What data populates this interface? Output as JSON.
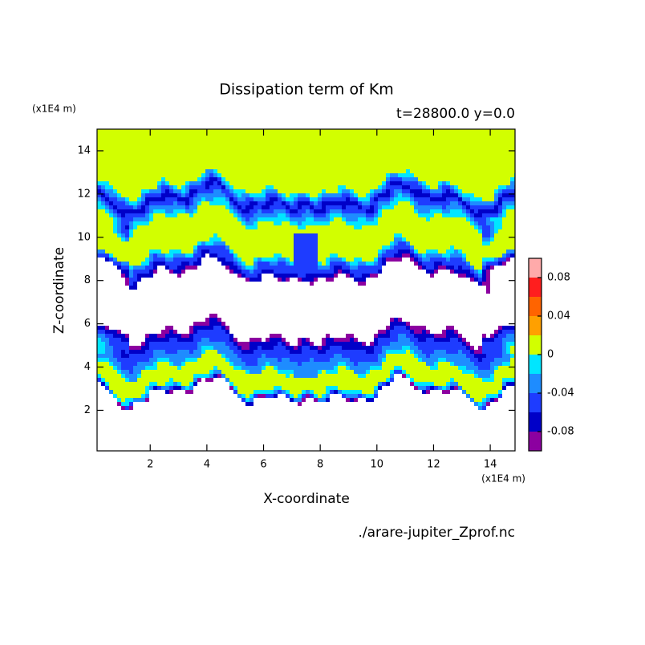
{
  "chart_data": {
    "type": "contour",
    "title": "Dissipation term of Km",
    "subtitle": "t=28800.0 y=0.0",
    "xlabel": "X-coordinate",
    "ylabel": "Z-coordinate",
    "x_unit": "(x1E4 m)",
    "y_unit": "(x1E4 m)",
    "footer": "./arare-jupiter_Zprof.nc",
    "xlim": [
      0.125,
      14.875
    ],
    "ylim": [
      0.125,
      15
    ],
    "xticks": [
      2,
      4,
      6,
      8,
      10,
      12,
      14
    ],
    "yticks": [
      2,
      4,
      6,
      8,
      10,
      12,
      14
    ],
    "colorbar": {
      "levels": [
        -0.1,
        -0.08,
        -0.06,
        -0.04,
        -0.02,
        0,
        0.02,
        0.04,
        0.06,
        0.08,
        0.1
      ],
      "colors": [
        "#8c00a0",
        "#0000c8",
        "#1e3cff",
        "#1e8cff",
        "#00e6ff",
        "#d2ff00",
        "#ffa000",
        "#ff6400",
        "#ff1e1e",
        "#ffaaaa"
      ],
      "ticks": [
        -0.08,
        -0.04,
        0,
        0.04,
        0.08
      ]
    }
  }
}
